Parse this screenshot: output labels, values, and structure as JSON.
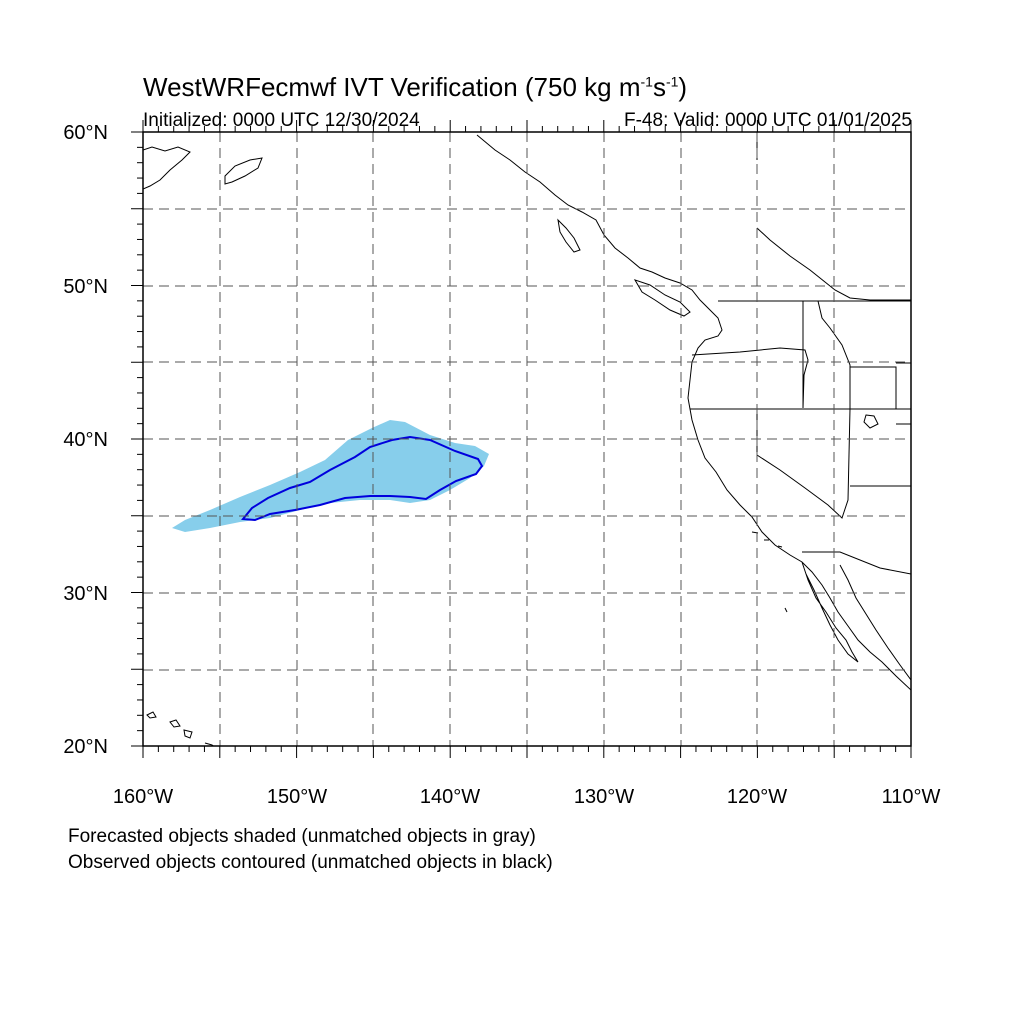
{
  "title": {
    "main": "WestWRFecmwf IVT Verification (750 kg m",
    "exp1": "-1",
    "mid": "s",
    "exp2": "-1",
    "end": ")"
  },
  "subtitle": {
    "left": "Initialized: 0000 UTC 12/30/2024",
    "right": "F-48: Valid: 0000 UTC 01/01/2025"
  },
  "map": {
    "lon_range": [
      -160,
      -110
    ],
    "lat_range": [
      20,
      60
    ],
    "grid": true,
    "y_ticks": [
      "60°N",
      "50°N",
      "40°N",
      "30°N",
      "20°N"
    ],
    "x_ticks": [
      "160°W",
      "150°W",
      "140°W",
      "130°W",
      "120°W",
      "110°W"
    ],
    "forecast_object_color": "#87ceeb",
    "observed_contour_color": "#0000dd",
    "coastline_color": "#000000"
  },
  "legend": {
    "line1": "Forecasted objects shaded (unmatched objects in gray)",
    "line2": "Observed objects contoured (unmatched objects in black)"
  }
}
